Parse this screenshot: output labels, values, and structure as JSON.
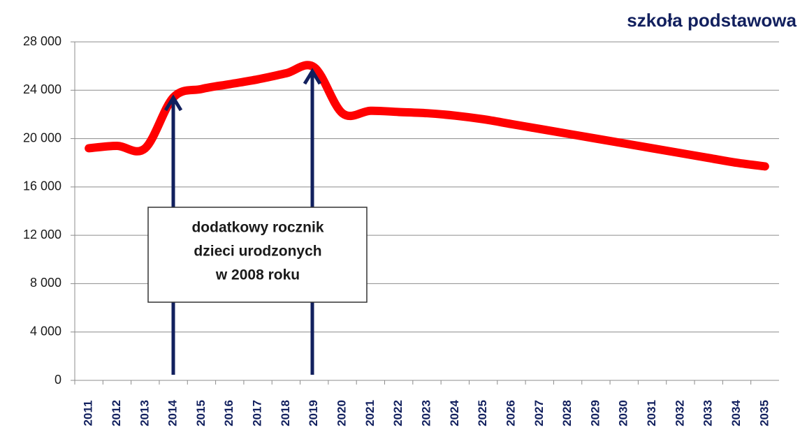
{
  "chart_data": {
    "type": "line",
    "title": "szkoła podstawowa",
    "categories": [
      "2011",
      "2012",
      "2013",
      "2014",
      "2015",
      "2016",
      "2017",
      "2018",
      "2019",
      "2020",
      "2021",
      "2022",
      "2023",
      "2024",
      "2025",
      "2026",
      "2027",
      "2028",
      "2029",
      "2030",
      "2031",
      "2032",
      "2033",
      "2034",
      "2035"
    ],
    "series": [
      {
        "name": "szkoła podstawowa",
        "color": "#ff0000",
        "values": [
          19200,
          19400,
          19200,
          23400,
          24100,
          24500,
          24900,
          25400,
          25900,
          22100,
          22300,
          22200,
          22100,
          21900,
          21600,
          21200,
          20800,
          20400,
          20000,
          19600,
          19200,
          18800,
          18400,
          18000,
          17700
        ]
      }
    ],
    "ylim": [
      0,
      28000
    ],
    "yticks": [
      0,
      {
        "value": 4000,
        "label": "4 000"
      },
      {
        "value": 8000,
        "label": "8 000"
      },
      {
        "value": 12000,
        "label": "12 000"
      },
      {
        "value": 16000,
        "label": "16 000"
      },
      {
        "value": 20000,
        "label": "20 000"
      },
      {
        "value": 24000,
        "label": "24 000"
      },
      {
        "value": 28000,
        "label": "28 000"
      }
    ],
    "grid": true,
    "annotation": [
      "dodatkowy rocznik",
      "dzieci urodzonych",
      "w 2008 roku"
    ]
  }
}
